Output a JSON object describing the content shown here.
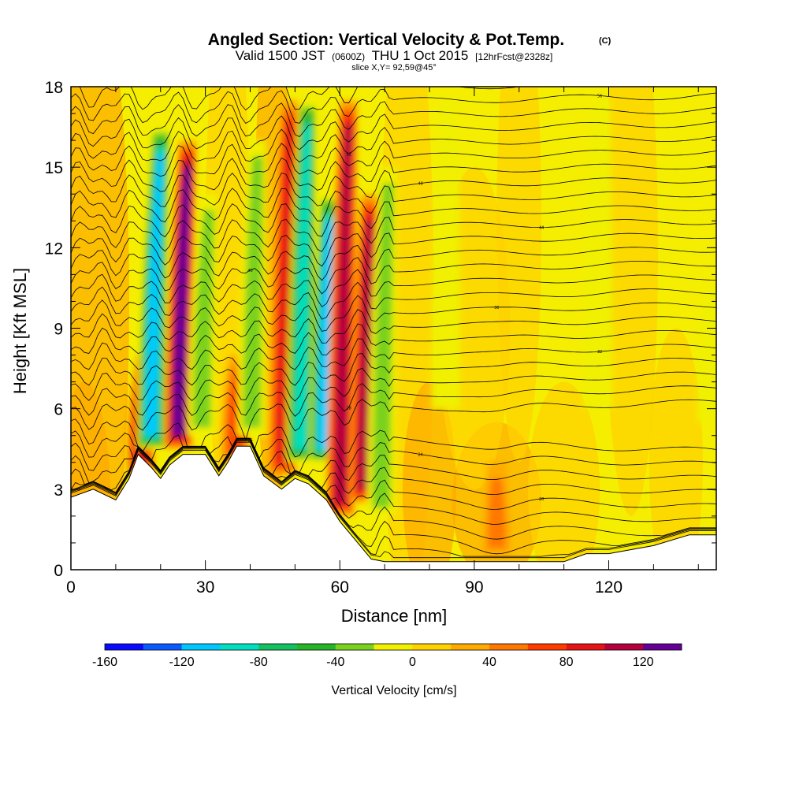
{
  "chart_data": {
    "type": "heatmap",
    "title": "Angled Section: Vertical Velocity & Pot.Temp.",
    "title_unit": "(C)",
    "subtitle_parts": [
      "Valid 1500 JST",
      "(0600Z)",
      "THU 1 Oct 2015",
      "[12hrFcst@2328z]"
    ],
    "slice_label": "slice X,Y= 92,59@45°",
    "xlabel": "Distance [nm]",
    "ylabel": "Height [Kft MSL]",
    "xlim": [
      0,
      144
    ],
    "ylim": [
      0,
      18
    ],
    "x_ticks": [
      0,
      30,
      60,
      90,
      120
    ],
    "y_ticks": [
      0,
      3,
      6,
      9,
      12,
      15,
      18
    ],
    "colorbar": {
      "label": "Vertical Velocity [cm/s]",
      "ticks": [
        -160,
        -120,
        -80,
        -40,
        0,
        40,
        80,
        120
      ],
      "range": [
        -160,
        140
      ],
      "colors": [
        "#0a0aff",
        "#0a5aff",
        "#00c8ff",
        "#00e0c0",
        "#14c060",
        "#28b428",
        "#7ad21e",
        "#f0f000",
        "#ffd200",
        "#ffaa00",
        "#ff7800",
        "#ff3c00",
        "#e61414",
        "#b4003c",
        "#640096"
      ]
    },
    "terrain_profile": {
      "x": [
        0,
        5,
        10,
        13,
        15,
        18,
        20,
        22,
        25,
        30,
        33,
        35,
        37,
        40,
        43,
        47,
        50,
        53,
        57,
        60,
        63,
        67,
        70,
        80,
        90,
        100,
        110,
        115,
        120,
        130,
        138,
        144
      ],
      "height": [
        2.7,
        3.0,
        2.6,
        3.4,
        4.3,
        3.8,
        3.4,
        3.9,
        4.3,
        4.3,
        3.5,
        4.0,
        4.6,
        4.6,
        3.5,
        3.0,
        3.4,
        3.2,
        2.6,
        1.8,
        1.2,
        0.4,
        0.3,
        0.3,
        0.3,
        0.3,
        0.3,
        0.6,
        0.6,
        0.9,
        1.3,
        1.3
      ]
    },
    "velocity_bands": [
      {
        "x": 16,
        "y_bottom": 3.5,
        "y_top": 8.0,
        "value": 90,
        "tilt": 0.7
      },
      {
        "x": 19,
        "y_bottom": 4.5,
        "y_top": 16.5,
        "value": -130,
        "tilt": 0.6
      },
      {
        "x": 25,
        "y_bottom": 4.5,
        "y_top": 16.0,
        "value": 120,
        "tilt": 0.6
      },
      {
        "x": 30,
        "y_bottom": 5.0,
        "y_top": 14.0,
        "value": -50,
        "tilt": 0.6
      },
      {
        "x": 37,
        "y_bottom": 4.0,
        "y_top": 8.0,
        "value": 60,
        "tilt": 0.4
      },
      {
        "x": 41,
        "y_bottom": 5.0,
        "y_top": 16.0,
        "value": -45,
        "tilt": 0.4
      },
      {
        "x": 48,
        "y_bottom": 3.5,
        "y_top": 17.5,
        "value": 95,
        "tilt": 0.4
      },
      {
        "x": 52,
        "y_bottom": 4.0,
        "y_top": 17.5,
        "value": -115,
        "tilt": 0.4
      },
      {
        "x": 57,
        "y_bottom": 4.0,
        "y_top": 14.0,
        "value": -120,
        "tilt": 0.4
      },
      {
        "x": 61,
        "y_bottom": 2.0,
        "y_top": 17.5,
        "value": 110,
        "tilt": 0.4
      },
      {
        "x": 66,
        "y_bottom": 2.5,
        "y_top": 14.0,
        "value": 100,
        "tilt": 0.4
      },
      {
        "x": 70,
        "y_bottom": 2.0,
        "y_top": 15.0,
        "value": -45,
        "tilt": 0.4
      },
      {
        "x": 84,
        "y_bottom": 6.0,
        "y_top": 17.5,
        "value": -30,
        "tilt": 0.2
      },
      {
        "x": 95,
        "y_bottom": 0.5,
        "y_top": 4.0,
        "value": 40,
        "tilt": 0.0
      },
      {
        "x": 118,
        "y_bottom": 6.0,
        "y_top": 17.5,
        "value": -30,
        "tilt": 0.2
      },
      {
        "x": 143,
        "y_bottom": 5.5,
        "y_top": 10.5,
        "value": -35,
        "tilt": 0.0
      }
    ],
    "contour_labels": [
      "16",
      "20",
      "24",
      "28",
      "32",
      "36",
      "40",
      "44",
      "48",
      "52",
      "56",
      "60"
    ]
  }
}
